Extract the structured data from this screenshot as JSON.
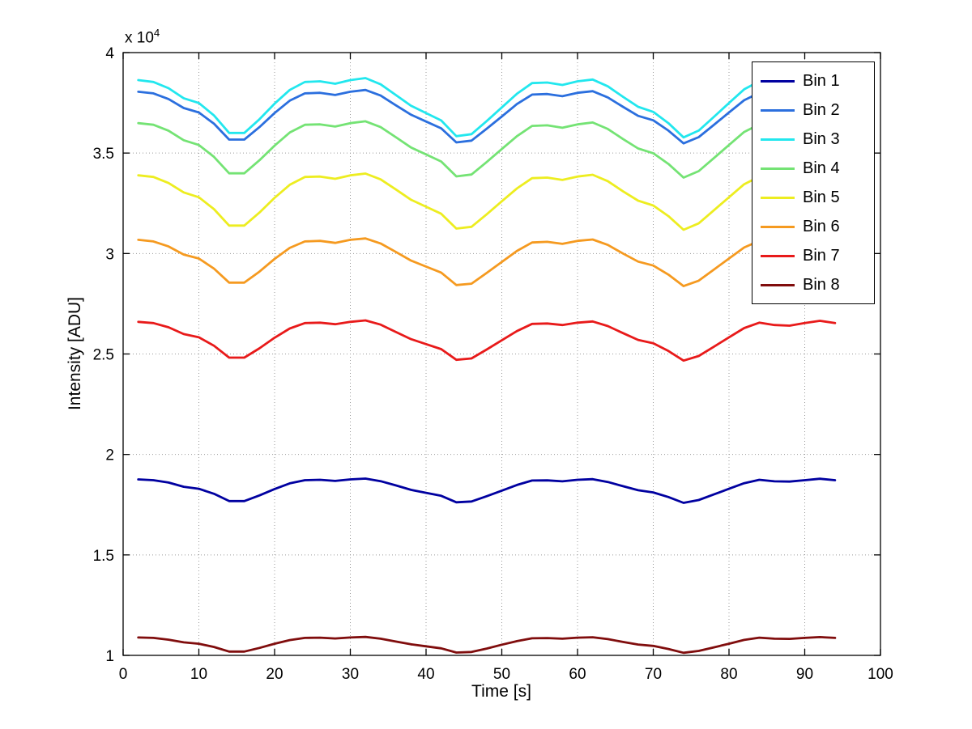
{
  "figure": {
    "background": "#ffffff",
    "y_multiplier_prefix": "x 10",
    "y_multiplier_exp": "4"
  },
  "chart_data": {
    "type": "line",
    "title": "",
    "xlabel": "Time [s]",
    "ylabel": "Intensity [ADU]",
    "y_unit_scale": "1e4",
    "xlim": [
      0,
      100
    ],
    "ylim": [
      1,
      4
    ],
    "grid": true,
    "legend_position": "top-right",
    "x_ticks": [
      0,
      10,
      20,
      30,
      40,
      50,
      60,
      70,
      80,
      90,
      100
    ],
    "x_tick_labels": [
      "0",
      "10",
      "20",
      "30",
      "40",
      "50",
      "60",
      "70",
      "80",
      "90",
      "100"
    ],
    "y_ticks": [
      1,
      1.5,
      2,
      2.5,
      3,
      3.5,
      4
    ],
    "y_tick_labels": [
      "1",
      "1.5",
      "2",
      "2.5",
      "3",
      "3.5",
      "4"
    ],
    "x": [
      2,
      4,
      6,
      8,
      10,
      12,
      14,
      16,
      18,
      20,
      22,
      24,
      26,
      28,
      30,
      32,
      34,
      36,
      38,
      40,
      42,
      44,
      46,
      48,
      50,
      52,
      54,
      56,
      58,
      60,
      62,
      64,
      66,
      68,
      70,
      72,
      74,
      76,
      78,
      80,
      82,
      84,
      86,
      88,
      90,
      92,
      94
    ],
    "series": [
      {
        "name": "Bin 1",
        "color": "#0000A0",
        "values": [
          1.876,
          1.872,
          1.86,
          1.839,
          1.829,
          1.804,
          1.768,
          1.768,
          1.796,
          1.828,
          1.856,
          1.872,
          1.874,
          1.868,
          1.876,
          1.88,
          1.867,
          1.846,
          1.824,
          1.809,
          1.794,
          1.762,
          1.766,
          1.792,
          1.82,
          1.848,
          1.87,
          1.871,
          1.866,
          1.874,
          1.877,
          1.863,
          1.842,
          1.822,
          1.811,
          1.788,
          1.759,
          1.773,
          1.801,
          1.829,
          1.857,
          1.874,
          1.866,
          1.865,
          1.872,
          1.879,
          1.872
        ]
      },
      {
        "name": "Bin 2",
        "color": "#2B6FDE",
        "values": [
          3.805,
          3.797,
          3.769,
          3.724,
          3.702,
          3.646,
          3.567,
          3.567,
          3.629,
          3.699,
          3.761,
          3.797,
          3.8,
          3.789,
          3.805,
          3.814,
          3.786,
          3.738,
          3.691,
          3.657,
          3.623,
          3.553,
          3.562,
          3.621,
          3.682,
          3.744,
          3.791,
          3.794,
          3.783,
          3.8,
          3.808,
          3.777,
          3.73,
          3.685,
          3.663,
          3.612,
          3.548,
          3.579,
          3.64,
          3.702,
          3.763,
          3.8,
          3.783,
          3.78,
          3.797,
          3.811,
          3.797
        ]
      },
      {
        "name": "Bin 3",
        "color": "#22E7EE",
        "values": [
          3.863,
          3.854,
          3.823,
          3.773,
          3.749,
          3.687,
          3.6,
          3.6,
          3.668,
          3.746,
          3.814,
          3.854,
          3.857,
          3.845,
          3.863,
          3.873,
          3.842,
          3.789,
          3.736,
          3.699,
          3.662,
          3.584,
          3.594,
          3.659,
          3.727,
          3.795,
          3.848,
          3.851,
          3.839,
          3.857,
          3.866,
          3.832,
          3.78,
          3.73,
          3.705,
          3.649,
          3.578,
          3.612,
          3.68,
          3.749,
          3.817,
          3.857,
          3.839,
          3.835,
          3.854,
          3.87,
          3.854
        ]
      },
      {
        "name": "Bin 4",
        "color": "#74E374",
        "values": [
          3.649,
          3.641,
          3.611,
          3.564,
          3.54,
          3.481,
          3.399,
          3.399,
          3.464,
          3.537,
          3.602,
          3.641,
          3.643,
          3.632,
          3.649,
          3.658,
          3.629,
          3.579,
          3.528,
          3.493,
          3.458,
          3.384,
          3.393,
          3.455,
          3.52,
          3.584,
          3.635,
          3.638,
          3.626,
          3.643,
          3.652,
          3.62,
          3.57,
          3.523,
          3.499,
          3.446,
          3.378,
          3.41,
          3.475,
          3.54,
          3.605,
          3.643,
          3.626,
          3.623,
          3.641,
          3.655,
          3.641
        ]
      },
      {
        "name": "Bin 5",
        "color": "#EDED20",
        "values": [
          3.389,
          3.381,
          3.351,
          3.304,
          3.28,
          3.221,
          3.139,
          3.139,
          3.204,
          3.277,
          3.342,
          3.381,
          3.383,
          3.372,
          3.389,
          3.398,
          3.369,
          3.319,
          3.268,
          3.233,
          3.198,
          3.124,
          3.133,
          3.195,
          3.26,
          3.324,
          3.375,
          3.378,
          3.366,
          3.383,
          3.392,
          3.36,
          3.31,
          3.263,
          3.239,
          3.186,
          3.118,
          3.15,
          3.215,
          3.28,
          3.345,
          3.383,
          3.366,
          3.363,
          3.381,
          3.395,
          3.381
        ]
      },
      {
        "name": "Bin 6",
        "color": "#F59A20",
        "values": [
          3.068,
          3.06,
          3.035,
          2.995,
          2.975,
          2.925,
          2.855,
          2.855,
          2.91,
          2.973,
          3.028,
          3.06,
          3.063,
          3.053,
          3.068,
          3.075,
          3.05,
          3.008,
          2.965,
          2.935,
          2.905,
          2.843,
          2.85,
          2.903,
          2.958,
          3.013,
          3.055,
          3.058,
          3.048,
          3.063,
          3.07,
          3.043,
          3.0,
          2.96,
          2.94,
          2.895,
          2.838,
          2.865,
          2.92,
          2.975,
          3.03,
          3.063,
          3.048,
          3.045,
          3.06,
          3.073,
          3.06
        ]
      },
      {
        "name": "Bin 7",
        "color": "#E81A1A",
        "values": [
          2.66,
          2.654,
          2.633,
          2.599,
          2.583,
          2.541,
          2.482,
          2.482,
          2.528,
          2.581,
          2.627,
          2.654,
          2.656,
          2.648,
          2.66,
          2.667,
          2.646,
          2.61,
          2.574,
          2.549,
          2.524,
          2.471,
          2.478,
          2.522,
          2.568,
          2.614,
          2.65,
          2.652,
          2.644,
          2.656,
          2.662,
          2.639,
          2.604,
          2.57,
          2.553,
          2.515,
          2.467,
          2.49,
          2.536,
          2.583,
          2.629,
          2.656,
          2.644,
          2.641,
          2.654,
          2.665,
          2.654
        ]
      },
      {
        "name": "Bin 8",
        "color": "#800D0D",
        "values": [
          1.089,
          1.087,
          1.078,
          1.065,
          1.058,
          1.042,
          1.019,
          1.019,
          1.037,
          1.058,
          1.076,
          1.087,
          1.088,
          1.084,
          1.089,
          1.092,
          1.083,
          1.069,
          1.055,
          1.045,
          1.035,
          1.014,
          1.017,
          1.034,
          1.053,
          1.071,
          1.085,
          1.086,
          1.083,
          1.088,
          1.09,
          1.081,
          1.067,
          1.054,
          1.047,
          1.032,
          1.013,
          1.022,
          1.04,
          1.058,
          1.077,
          1.088,
          1.083,
          1.082,
          1.087,
          1.091,
          1.087
        ]
      }
    ]
  }
}
